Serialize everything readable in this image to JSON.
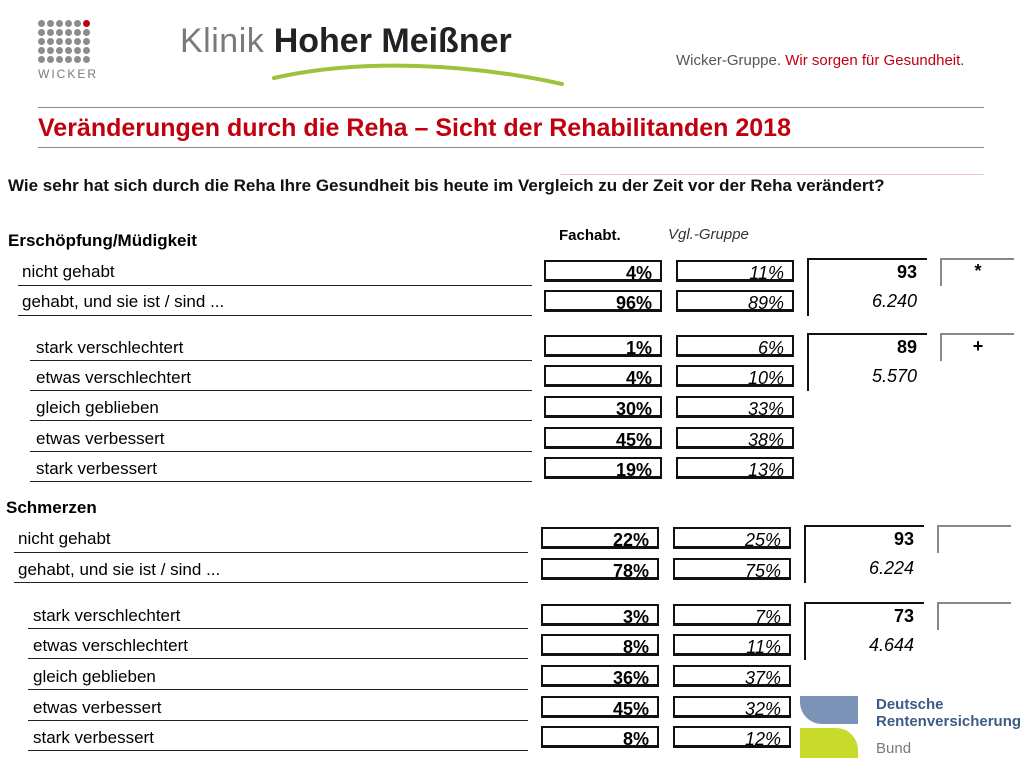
{
  "header": {
    "wicker_text": "WICKER",
    "klinik_light": "Klinik",
    "klinik_bold": "Hoher Meißner",
    "slogan_grey": "Wicker-Gruppe.",
    "slogan_red": "Wir sorgen für Gesundheit.",
    "title": "Veränderungen durch die Reha – Sicht der Rehabilitanden 2018"
  },
  "question": "Wie sehr hat sich durch die Reha Ihre Gesundheit bis heute im Vergleich zu der Zeit vor der Reha verändert?",
  "columns": {
    "fach": "Fachabt.",
    "vgl": "Vgl.-Gruppe"
  },
  "sections": [
    {
      "title": "Erschöpfung/Müdigkeit",
      "block1": {
        "rows": [
          {
            "label": "nicht gehabt",
            "fach": "4%",
            "vgl": "11%"
          },
          {
            "label": "gehabt, und sie ist / sind ...",
            "fach": "96%",
            "vgl": "89%"
          }
        ],
        "n": "93",
        "n_sub": "6.240",
        "sig": "*"
      },
      "block2": {
        "rows": [
          {
            "label": "stark verschlechtert",
            "fach": "1%",
            "vgl": "6%"
          },
          {
            "label": "etwas verschlechtert",
            "fach": "4%",
            "vgl": "10%"
          },
          {
            "label": "gleich geblieben",
            "fach": "30%",
            "vgl": "33%"
          },
          {
            "label": "etwas verbessert",
            "fach": "45%",
            "vgl": "38%"
          },
          {
            "label": "stark verbessert",
            "fach": "19%",
            "vgl": "13%"
          }
        ],
        "n": "89",
        "n_sub": "5.570",
        "sig": "+"
      }
    },
    {
      "title": "Schmerzen",
      "block1": {
        "rows": [
          {
            "label": "nicht gehabt",
            "fach": "22%",
            "vgl": "25%"
          },
          {
            "label": "gehabt, und sie ist / sind ...",
            "fach": "78%",
            "vgl": "75%"
          }
        ],
        "n": "93",
        "n_sub": "6.224",
        "sig": ""
      },
      "block2": {
        "rows": [
          {
            "label": "stark verschlechtert",
            "fach": "3%",
            "vgl": "7%"
          },
          {
            "label": "etwas verschlechtert",
            "fach": "8%",
            "vgl": "11%"
          },
          {
            "label": "gleich geblieben",
            "fach": "36%",
            "vgl": "37%"
          },
          {
            "label": "etwas verbessert",
            "fach": "45%",
            "vgl": "32%"
          },
          {
            "label": "stark verbessert",
            "fach": "8%",
            "vgl": "12%"
          }
        ],
        "n": "73",
        "n_sub": "4.644",
        "sig": ""
      }
    }
  ],
  "drv": {
    "line1": "Deutsche",
    "line2": "Rentenversicherung",
    "line3": "Bund"
  }
}
